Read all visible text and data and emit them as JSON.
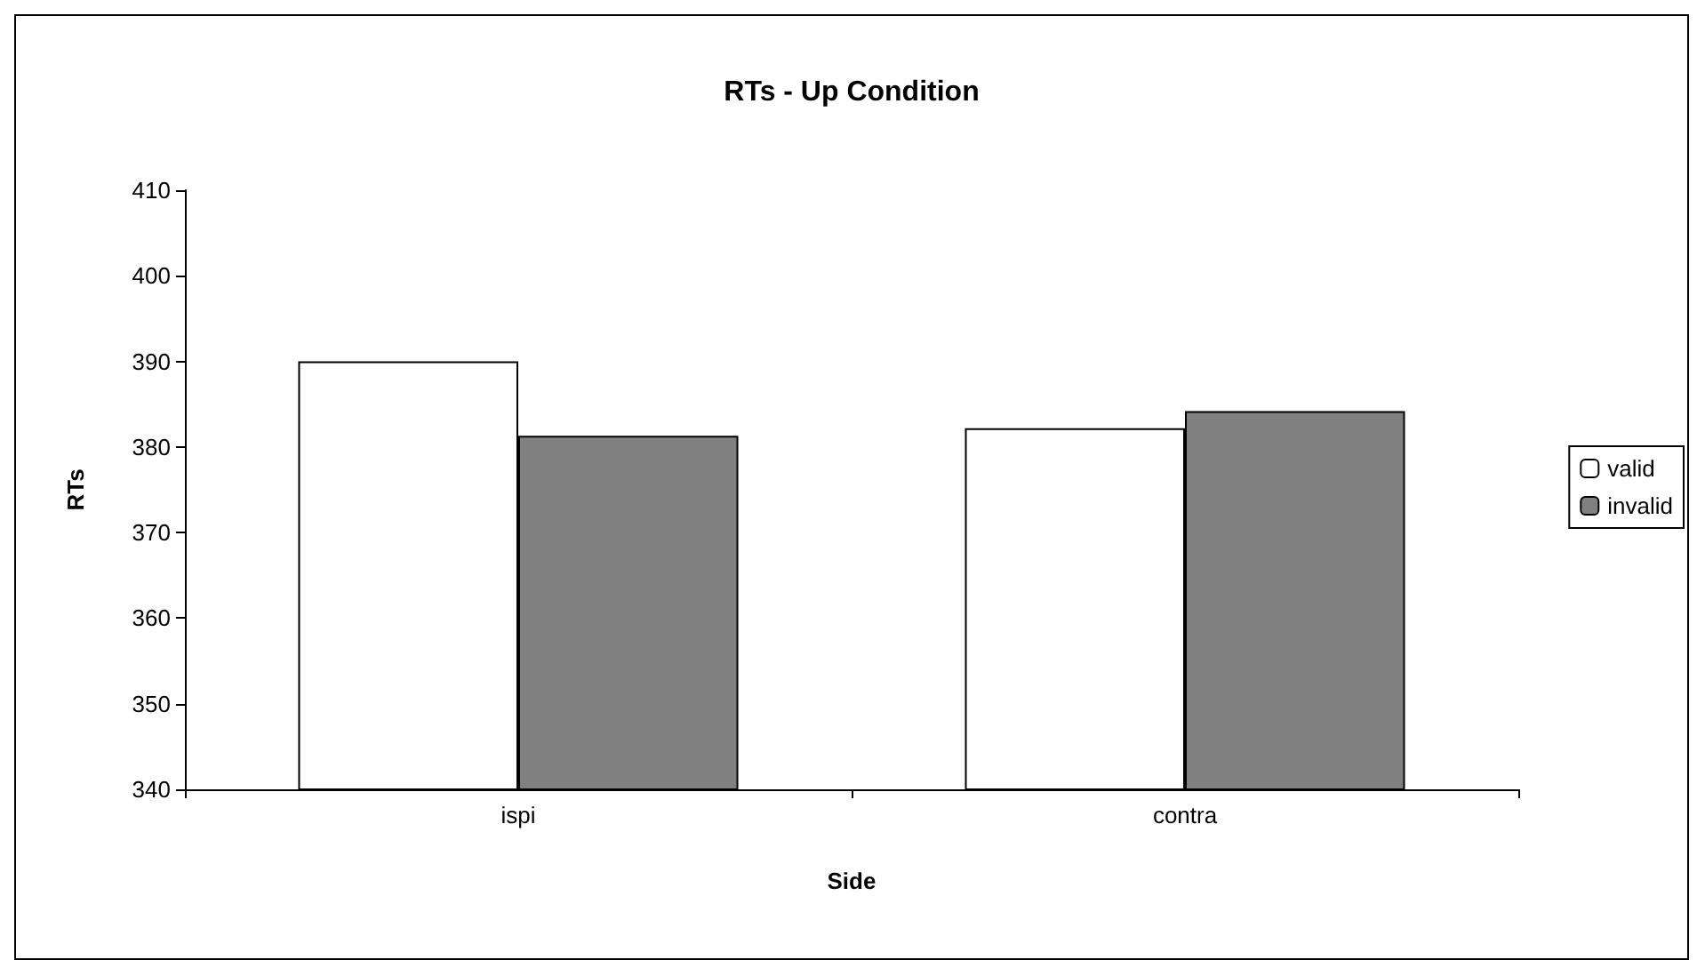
{
  "chart_data": {
    "type": "bar",
    "title": "RTs - Up Condition",
    "xlabel": "Side",
    "ylabel": "RTs",
    "categories": [
      "ispi",
      "contra"
    ],
    "series": [
      {
        "name": "valid",
        "color": "#ffffff",
        "values": [
          390,
          382.2
        ]
      },
      {
        "name": "invalid",
        "color": "#808080",
        "values": [
          381.3,
          384.2
        ]
      }
    ],
    "ylim": [
      340,
      410
    ],
    "yticks": [
      340,
      350,
      360,
      370,
      380,
      390,
      400,
      410
    ],
    "grid": false,
    "legend": "right"
  }
}
